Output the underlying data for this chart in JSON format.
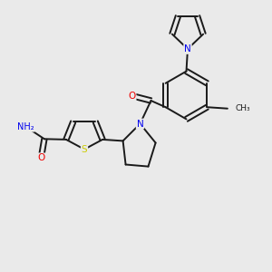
{
  "bg_color": "#eaeaea",
  "bond_color": "#1a1a1a",
  "atom_colors": {
    "N": "#0000ee",
    "O": "#ee0000",
    "S": "#cccc00",
    "H": "#888888",
    "C": "#1a1a1a"
  }
}
